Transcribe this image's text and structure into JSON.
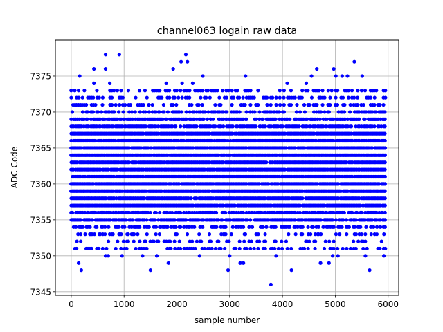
{
  "chart_data": {
    "type": "scatter",
    "title": "channel063 logain raw data",
    "xlabel": "sample number",
    "ylabel": "ADC Code",
    "xlim": [
      -300,
      6200
    ],
    "ylim": [
      7344.5,
      7380
    ],
    "xticks": [
      0,
      1000,
      2000,
      3000,
      4000,
      5000,
      6000
    ],
    "yticks": [
      7345,
      7350,
      7355,
      7360,
      7365,
      7370,
      7375
    ],
    "grid": true,
    "marker_color": "#0000ff",
    "x_range": [
      0,
      5950
    ],
    "dense_band": [
      7352,
      7370
    ],
    "outliers": [
      {
        "x": 650,
        "y": 7378
      },
      {
        "x": 910,
        "y": 7378
      },
      {
        "x": 2170,
        "y": 7378
      },
      {
        "x": 2200,
        "y": 7377
      },
      {
        "x": 2080,
        "y": 7377
      },
      {
        "x": 5360,
        "y": 7377
      },
      {
        "x": 650,
        "y": 7376
      },
      {
        "x": 430,
        "y": 7376
      },
      {
        "x": 1930,
        "y": 7376
      },
      {
        "x": 4650,
        "y": 7376
      },
      {
        "x": 4970,
        "y": 7376
      },
      {
        "x": 160,
        "y": 7375
      },
      {
        "x": 2490,
        "y": 7375
      },
      {
        "x": 3300,
        "y": 7375
      },
      {
        "x": 4550,
        "y": 7375
      },
      {
        "x": 5010,
        "y": 7375
      },
      {
        "x": 5130,
        "y": 7375
      },
      {
        "x": 5510,
        "y": 7375
      },
      {
        "x": 5230,
        "y": 7375
      },
      {
        "x": 430,
        "y": 7374
      },
      {
        "x": 730,
        "y": 7374
      },
      {
        "x": 1800,
        "y": 7374
      },
      {
        "x": 2100,
        "y": 7374
      },
      {
        "x": 2300,
        "y": 7374
      },
      {
        "x": 4090,
        "y": 7374
      },
      {
        "x": 4450,
        "y": 7374
      },
      {
        "x": 140,
        "y": 7349
      },
      {
        "x": 190,
        "y": 7348
      },
      {
        "x": 1500,
        "y": 7348
      },
      {
        "x": 2970,
        "y": 7348
      },
      {
        "x": 4170,
        "y": 7348
      },
      {
        "x": 5650,
        "y": 7348
      },
      {
        "x": 3780,
        "y": 7346
      },
      {
        "x": 960,
        "y": 7350
      },
      {
        "x": 650,
        "y": 7350
      },
      {
        "x": 700,
        "y": 7350
      },
      {
        "x": 1350,
        "y": 7350
      },
      {
        "x": 1620,
        "y": 7350
      },
      {
        "x": 2430,
        "y": 7350
      },
      {
        "x": 3000,
        "y": 7350
      },
      {
        "x": 3880,
        "y": 7350
      },
      {
        "x": 4950,
        "y": 7350
      },
      {
        "x": 5050,
        "y": 7350
      },
      {
        "x": 5570,
        "y": 7350
      },
      {
        "x": 5920,
        "y": 7350
      },
      {
        "x": 3200,
        "y": 7349
      },
      {
        "x": 3260,
        "y": 7349
      },
      {
        "x": 1840,
        "y": 7349
      },
      {
        "x": 4720,
        "y": 7349
      },
      {
        "x": 4880,
        "y": 7349
      }
    ]
  }
}
